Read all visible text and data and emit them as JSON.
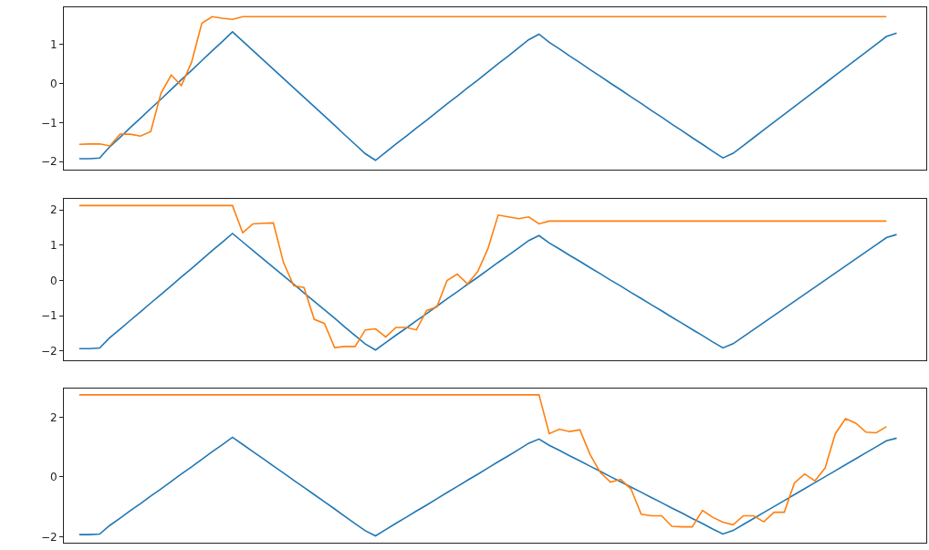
{
  "chart_data": [
    {
      "type": "line",
      "categories": [
        null,
        null,
        null,
        null,
        null,
        null,
        null,
        null,
        null,
        null,
        null,
        null,
        null,
        null,
        null,
        null,
        null,
        null,
        null,
        null,
        null,
        null,
        null,
        null,
        null,
        null,
        null,
        null,
        null,
        null,
        null,
        null,
        null,
        null,
        null,
        null,
        null,
        null,
        null,
        null,
        null,
        null,
        null,
        null,
        null,
        null,
        null,
        null,
        null,
        null,
        null,
        null,
        null,
        null,
        null,
        null,
        null,
        null,
        null,
        null,
        null,
        null,
        null,
        null,
        null,
        null,
        null,
        null,
        null,
        null,
        null,
        null,
        null,
        null,
        null,
        null,
        null,
        null,
        null,
        null,
        null
      ],
      "series": [
        {
          "color": "#1f77b4",
          "values": [
            -1.93,
            -1.93,
            -1.91,
            -1.62,
            -1.38,
            -1.13,
            -0.89,
            -0.64,
            -0.4,
            -0.15,
            0.1,
            0.34,
            0.59,
            0.84,
            1.08,
            1.33,
            1.09,
            0.85,
            0.61,
            0.37,
            0.13,
            -0.11,
            -0.35,
            -0.59,
            -0.83,
            -1.07,
            -1.32,
            -1.56,
            -1.8,
            -1.97,
            -1.76,
            -1.55,
            -1.35,
            -1.14,
            -0.94,
            -0.73,
            -0.52,
            -0.32,
            -0.11,
            0.09,
            0.3,
            0.51,
            0.71,
            0.92,
            1.13,
            1.27,
            1.06,
            0.89,
            0.71,
            0.54,
            0.36,
            0.19,
            0.01,
            -0.16,
            -0.34,
            -0.51,
            -0.69,
            -0.86,
            -1.04,
            -1.21,
            -1.39,
            -1.56,
            -1.74,
            -1.91,
            -1.79,
            -1.59,
            -1.39,
            -1.19,
            -0.99,
            -0.79,
            -0.59,
            -0.39,
            -0.19,
            0.01,
            0.21,
            0.41,
            0.61,
            0.81,
            1.01,
            1.21,
            1.3
          ]
        },
        {
          "color": "#ff7f0e",
          "values": [
            -1.56,
            -1.55,
            -1.55,
            -1.6,
            -1.3,
            -1.3,
            -1.35,
            -1.23,
            -0.25,
            0.22,
            -0.05,
            0.55,
            1.55,
            1.72,
            1.68,
            1.65,
            1.72,
            1.72,
            1.72,
            1.72,
            1.72,
            1.72,
            1.72,
            1.72,
            1.72,
            1.72,
            1.72,
            1.72,
            1.72,
            1.72,
            1.72,
            1.72,
            1.72,
            1.72,
            1.72,
            1.72,
            1.72,
            1.72,
            1.72,
            1.72,
            1.72,
            1.72,
            1.72,
            1.72,
            1.72,
            1.72,
            1.72,
            1.72,
            1.72,
            1.72,
            1.72,
            1.72,
            1.72,
            1.72,
            1.72,
            1.72,
            1.72,
            1.72,
            1.72,
            1.72,
            1.72,
            1.72,
            1.72,
            1.72,
            1.72,
            1.72,
            1.72,
            1.72,
            1.72,
            1.72,
            1.72,
            1.72,
            1.72,
            1.72,
            1.72,
            1.72,
            1.72,
            1.72,
            1.72,
            1.72,
            null
          ]
        }
      ],
      "ylim": [
        -2.21,
        1.96
      ],
      "yticks": [
        -2,
        -1,
        0,
        1
      ],
      "grid": false,
      "tick_labels": "y"
    },
    {
      "type": "line",
      "categories": [
        null,
        null,
        null,
        null,
        null,
        null,
        null,
        null,
        null,
        null,
        null,
        null,
        null,
        null,
        null,
        null,
        null,
        null,
        null,
        null,
        null,
        null,
        null,
        null,
        null,
        null,
        null,
        null,
        null,
        null,
        null,
        null,
        null,
        null,
        null,
        null,
        null,
        null,
        null,
        null,
        null,
        null,
        null,
        null,
        null,
        null,
        null,
        null,
        null,
        null,
        null,
        null,
        null,
        null,
        null,
        null,
        null,
        null,
        null,
        null,
        null,
        null,
        null,
        null,
        null,
        null,
        null,
        null,
        null,
        null,
        null,
        null,
        null,
        null,
        null,
        null,
        null,
        null,
        null,
        null,
        null
      ],
      "series": [
        {
          "color": "#1f77b4",
          "values": [
            -1.93,
            -1.93,
            -1.91,
            -1.62,
            -1.38,
            -1.13,
            -0.89,
            -0.64,
            -0.4,
            -0.15,
            0.1,
            0.34,
            0.59,
            0.84,
            1.08,
            1.33,
            1.09,
            0.85,
            0.61,
            0.37,
            0.13,
            -0.11,
            -0.35,
            -0.59,
            -0.83,
            -1.07,
            -1.32,
            -1.56,
            -1.8,
            -1.97,
            -1.76,
            -1.55,
            -1.35,
            -1.14,
            -0.94,
            -0.73,
            -0.52,
            -0.32,
            -0.11,
            0.09,
            0.3,
            0.51,
            0.71,
            0.92,
            1.13,
            1.27,
            1.06,
            0.89,
            0.71,
            0.54,
            0.36,
            0.19,
            0.01,
            -0.16,
            -0.34,
            -0.51,
            -0.69,
            -0.86,
            -1.04,
            -1.21,
            -1.39,
            -1.56,
            -1.74,
            -1.91,
            -1.79,
            -1.59,
            -1.39,
            -1.19,
            -0.99,
            -0.79,
            -0.59,
            -0.39,
            -0.19,
            0.01,
            0.21,
            0.41,
            0.61,
            0.81,
            1.01,
            1.21,
            1.3
          ]
        },
        {
          "color": "#ff7f0e",
          "values": [
            2.12,
            2.12,
            2.12,
            2.12,
            2.12,
            2.12,
            2.12,
            2.12,
            2.12,
            2.12,
            2.12,
            2.12,
            2.12,
            2.12,
            2.12,
            2.12,
            1.35,
            1.6,
            1.62,
            1.63,
            0.5,
            -0.15,
            -0.2,
            -1.1,
            -1.22,
            -1.9,
            -1.87,
            -1.87,
            -1.4,
            -1.37,
            -1.6,
            -1.33,
            -1.33,
            -1.4,
            -0.85,
            -0.75,
            0.0,
            0.18,
            -0.1,
            0.25,
            0.9,
            1.85,
            1.8,
            1.75,
            1.8,
            1.6,
            1.68,
            1.68,
            1.68,
            1.68,
            1.68,
            1.68,
            1.68,
            1.68,
            1.68,
            1.68,
            1.68,
            1.68,
            1.68,
            1.68,
            1.68,
            1.68,
            1.68,
            1.68,
            1.68,
            1.68,
            1.68,
            1.68,
            1.68,
            1.68,
            1.68,
            1.68,
            1.68,
            1.68,
            1.68,
            1.68,
            1.68,
            1.68,
            1.68,
            1.68,
            null
          ]
        }
      ],
      "ylim": [
        -2.26,
        2.31
      ],
      "yticks": [
        -2,
        -1,
        0,
        1,
        2
      ],
      "grid": false,
      "tick_labels": "y"
    },
    {
      "type": "line",
      "categories": [
        null,
        null,
        null,
        null,
        null,
        null,
        null,
        null,
        null,
        null,
        null,
        null,
        null,
        null,
        null,
        null,
        null,
        null,
        null,
        null,
        null,
        null,
        null,
        null,
        null,
        null,
        null,
        null,
        null,
        null,
        null,
        null,
        null,
        null,
        null,
        null,
        null,
        null,
        null,
        null,
        null,
        null,
        null,
        null,
        null,
        null,
        null,
        null,
        null,
        null,
        null,
        null,
        null,
        null,
        null,
        null,
        null,
        null,
        null,
        null,
        null,
        null,
        null,
        null,
        null,
        null,
        null,
        null,
        null,
        null,
        null,
        null,
        null,
        null,
        null,
        null,
        null,
        null,
        null,
        null,
        null
      ],
      "series": [
        {
          "color": "#1f77b4",
          "values": [
            -1.93,
            -1.93,
            -1.91,
            -1.62,
            -1.38,
            -1.13,
            -0.89,
            -0.64,
            -0.4,
            -0.15,
            0.1,
            0.34,
            0.59,
            0.84,
            1.08,
            1.33,
            1.09,
            0.85,
            0.61,
            0.37,
            0.13,
            -0.11,
            -0.35,
            -0.59,
            -0.83,
            -1.07,
            -1.32,
            -1.56,
            -1.8,
            -1.97,
            -1.76,
            -1.55,
            -1.35,
            -1.14,
            -0.94,
            -0.73,
            -0.52,
            -0.32,
            -0.11,
            0.09,
            0.3,
            0.51,
            0.71,
            0.92,
            1.13,
            1.27,
            1.06,
            0.89,
            0.71,
            0.54,
            0.36,
            0.19,
            0.01,
            -0.16,
            -0.34,
            -0.51,
            -0.69,
            -0.86,
            -1.04,
            -1.21,
            -1.39,
            -1.56,
            -1.74,
            -1.91,
            -1.79,
            -1.59,
            -1.39,
            -1.19,
            -0.99,
            -0.79,
            -0.59,
            -0.39,
            -0.19,
            0.01,
            0.21,
            0.41,
            0.61,
            0.81,
            1.01,
            1.21,
            1.3
          ]
        },
        {
          "color": "#ff7f0e",
          "values": [
            2.75,
            2.75,
            2.75,
            2.75,
            2.75,
            2.75,
            2.75,
            2.75,
            2.75,
            2.75,
            2.75,
            2.75,
            2.75,
            2.75,
            2.75,
            2.75,
            2.75,
            2.75,
            2.75,
            2.75,
            2.75,
            2.75,
            2.75,
            2.75,
            2.75,
            2.75,
            2.75,
            2.75,
            2.75,
            2.75,
            2.75,
            2.75,
            2.75,
            2.75,
            2.75,
            2.75,
            2.75,
            2.75,
            2.75,
            2.75,
            2.75,
            2.75,
            2.75,
            2.75,
            2.75,
            2.75,
            1.45,
            1.6,
            1.52,
            1.58,
            0.75,
            0.15,
            -0.17,
            -0.08,
            -0.4,
            -1.25,
            -1.3,
            -1.3,
            -1.65,
            -1.67,
            -1.67,
            -1.12,
            -1.35,
            -1.51,
            -1.6,
            -1.3,
            -1.3,
            -1.5,
            -1.18,
            -1.18,
            -0.2,
            0.1,
            -0.13,
            0.3,
            1.45,
            1.95,
            1.8,
            1.5,
            1.48,
            1.68,
            null
          ]
        }
      ],
      "ylim": [
        -2.2,
        2.96
      ],
      "yticks": [
        -2,
        0,
        2
      ],
      "grid": false,
      "tick_labels": "y"
    }
  ]
}
